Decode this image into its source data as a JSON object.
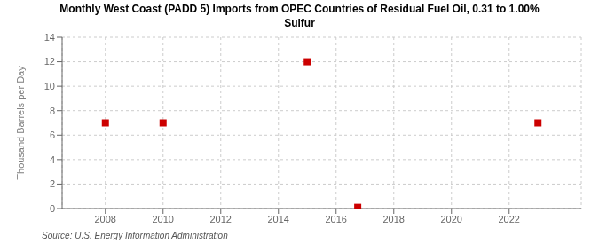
{
  "chart_data": {
    "type": "scatter",
    "title": "Monthly West Coast (PADD 5) Imports from OPEC Countries of Residual Fuel Oil, 0.31 to 1.00%\nSulfur",
    "ylabel": "Thousand Barrels per Day",
    "source": "Source: U.S. Energy Information Administration",
    "x": [
      2008.0,
      2010.0,
      2015.0,
      2016.75,
      2023.0
    ],
    "values": [
      7.0,
      7.0,
      12.0,
      0.1,
      7.0
    ],
    "color": "#cc0000",
    "marker": "square",
    "xlim": [
      2006.5,
      2024.5
    ],
    "ylim": [
      0,
      14
    ],
    "xticks": [
      2008,
      2010,
      2012,
      2014,
      2016,
      2018,
      2020,
      2022
    ],
    "yticks": [
      0,
      2,
      4,
      6,
      8,
      10,
      12,
      14
    ],
    "grid": true
  }
}
